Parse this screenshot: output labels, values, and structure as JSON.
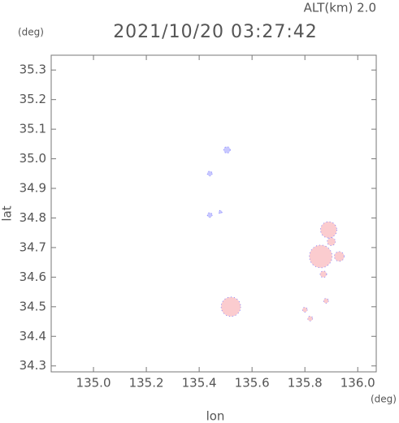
{
  "chart_data": {
    "type": "scatter",
    "title": "2021/10/20 03:27:42",
    "subtitle": "ALT(km) 2.0",
    "x_unit": "(deg)",
    "y_unit": "(deg)",
    "x_label": "lon",
    "y_label": "lat",
    "xlim": [
      134.84,
      136.07
    ],
    "ylim": [
      34.28,
      35.35
    ],
    "xticks": [
      {
        "value": 135,
        "label": "135.0"
      },
      135.2,
      135.4,
      135.6,
      135.8,
      {
        "value": 136,
        "label": "136.0"
      }
    ],
    "yticks": [
      34.3,
      34.4,
      34.5,
      34.6,
      34.7,
      34.8,
      34.9,
      {
        "value": 35,
        "label": "35.0"
      },
      35.1,
      35.2,
      35.3
    ],
    "x": [
      135.505,
      135.44,
      135.44,
      135.48,
      135.52,
      135.89,
      135.86,
      135.93,
      135.87,
      135.88,
      135.8,
      135.82,
      135.9
    ],
    "y": [
      35.03,
      34.95,
      34.81,
      34.82,
      34.5,
      34.76,
      34.67,
      34.67,
      34.61,
      34.52,
      34.49,
      34.46,
      34.72
    ],
    "sizes": [
      4,
      3,
      3,
      2,
      12,
      10,
      14,
      6,
      4,
      3,
      3,
      3,
      5
    ],
    "colors": [
      "#c8c8ff",
      "#c8c8ff",
      "#c8c8ff",
      "#c8c8ff",
      "#fbcccf",
      "#fbcccf",
      "#fbcccf",
      "#fbcccf",
      "#fbcccf",
      "#fbcccf",
      "#fbcccf",
      "#fbcccf",
      "#fbcccf"
    ],
    "edge_color": "#7070ff"
  }
}
